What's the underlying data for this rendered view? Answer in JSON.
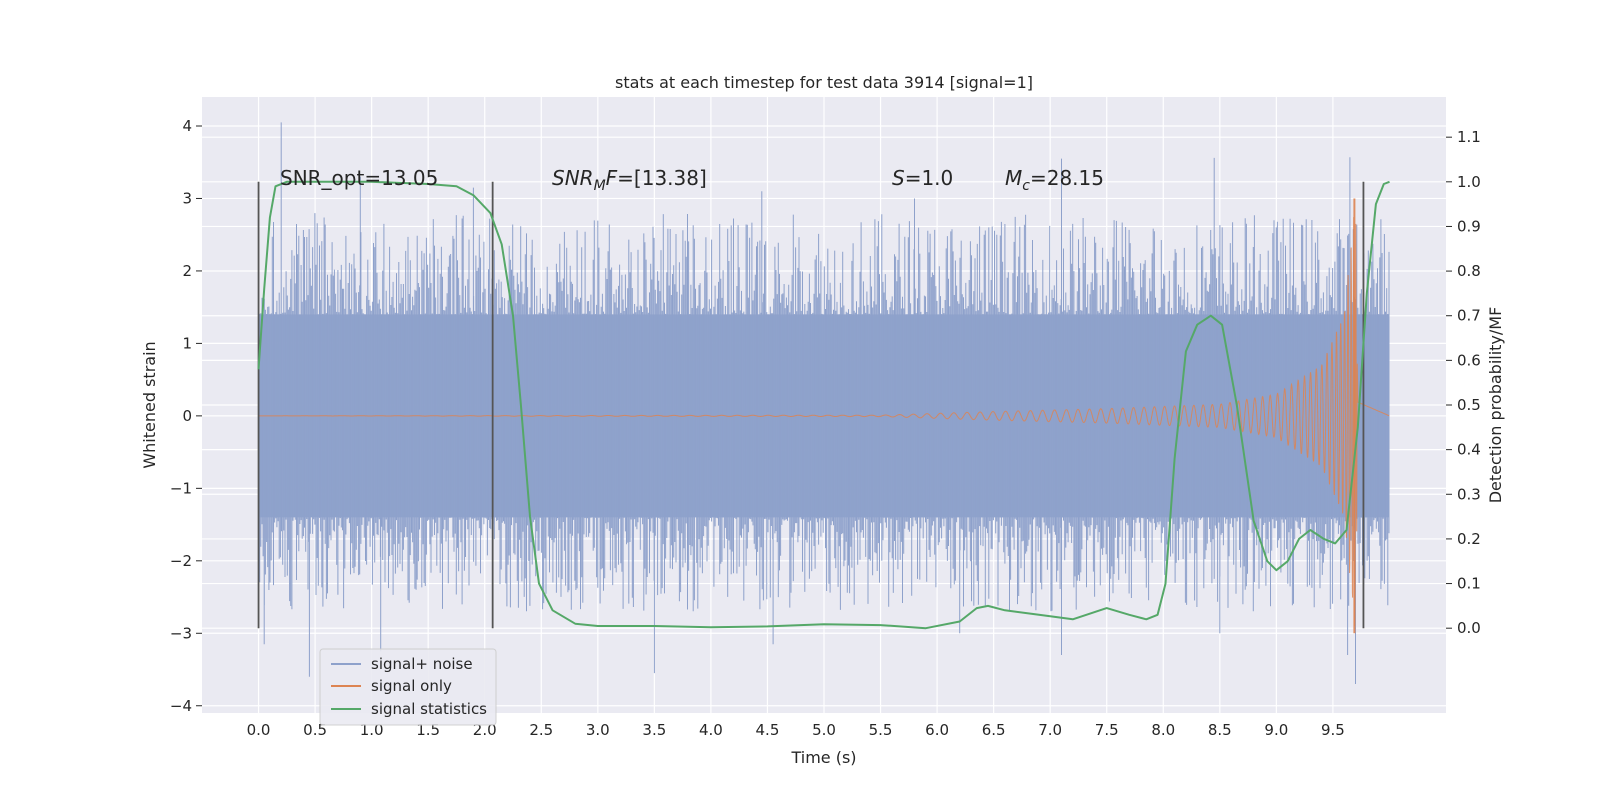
{
  "chart_data": {
    "type": "line",
    "title": "stats at each timestep for test data 3914 [signal=1]",
    "xlabel": "Time (s)",
    "ylabel": "Whitened strain",
    "ylabel_right": "Detection probability/MF",
    "xlim": [
      -0.5,
      10.5
    ],
    "ylim": [
      -4.1,
      4.4
    ],
    "ylim_right": [
      -0.19,
      1.19
    ],
    "x_ticks": [
      "0.0",
      "0.5",
      "1.0",
      "1.5",
      "2.0",
      "2.5",
      "3.0",
      "3.5",
      "4.0",
      "4.5",
      "5.0",
      "5.5",
      "6.0",
      "6.5",
      "7.0",
      "7.5",
      "8.0",
      "8.5",
      "9.0",
      "9.5"
    ],
    "y_ticks": [
      "−4",
      "−3",
      "−2",
      "−1",
      "0",
      "1",
      "2",
      "3",
      "4"
    ],
    "y_ticks_right": [
      "0.0",
      "0.1",
      "0.2",
      "0.3",
      "0.4",
      "0.5",
      "0.6",
      "0.7",
      "0.8",
      "0.9",
      "1.0",
      "1.1"
    ],
    "grid": true,
    "legend_position": "lower-left",
    "annotations": {
      "snr_opt": "SNR_opt=13.05",
      "snr_mf_main": "SNR",
      "snr_mf_sub": "M",
      "snr_mf_f": "F",
      "snr_mf_value": "=[13.38]",
      "s_label": "S",
      "s_value": "=1.0",
      "mc_main": "M",
      "mc_sub": "c",
      "mc_value": "=28.15"
    },
    "vertical_markers_x": [
      0.0,
      2.07,
      9.77
    ],
    "series": [
      {
        "name": "signal+ noise",
        "color": "#8ea1cb",
        "axis": "left",
        "x_range": [
          0.0,
          10.0
        ],
        "envelope_abs": 1.4,
        "spike_peak_max": 4.05,
        "spike_trough_min": -3.7
      },
      {
        "name": "signal only",
        "color": "#dd8452",
        "axis": "left",
        "x_range": [
          0.0,
          10.0
        ],
        "amplitude_points": [
          [
            0.0,
            0.0
          ],
          [
            5.5,
            0.01
          ],
          [
            6.5,
            0.06
          ],
          [
            7.5,
            0.1
          ],
          [
            8.5,
            0.16
          ],
          [
            9.0,
            0.3
          ],
          [
            9.4,
            0.7
          ],
          [
            9.6,
            1.4
          ],
          [
            9.7,
            3.0
          ],
          [
            9.72,
            0.2
          ],
          [
            10.0,
            0.0
          ]
        ],
        "chirp_peak": 3.0,
        "chirp_trough": -3.0
      },
      {
        "name": "signal statistics",
        "color": "#55a868",
        "axis": "right",
        "points": [
          [
            0.0,
            0.58
          ],
          [
            0.05,
            0.76
          ],
          [
            0.1,
            0.92
          ],
          [
            0.15,
            0.99
          ],
          [
            0.25,
            1.0
          ],
          [
            1.0,
            1.0
          ],
          [
            1.5,
            0.995
          ],
          [
            1.75,
            0.99
          ],
          [
            1.9,
            0.97
          ],
          [
            2.05,
            0.93
          ],
          [
            2.15,
            0.86
          ],
          [
            2.25,
            0.7
          ],
          [
            2.32,
            0.5
          ],
          [
            2.4,
            0.25
          ],
          [
            2.48,
            0.1
          ],
          [
            2.6,
            0.04
          ],
          [
            2.8,
            0.01
          ],
          [
            3.0,
            0.005
          ],
          [
            3.5,
            0.005
          ],
          [
            4.0,
            0.002
          ],
          [
            4.5,
            0.004
          ],
          [
            5.0,
            0.009
          ],
          [
            5.5,
            0.007
          ],
          [
            5.9,
            0.0
          ],
          [
            6.2,
            0.015
          ],
          [
            6.35,
            0.045
          ],
          [
            6.45,
            0.05
          ],
          [
            6.6,
            0.04
          ],
          [
            6.9,
            0.03
          ],
          [
            7.2,
            0.02
          ],
          [
            7.5,
            0.045
          ],
          [
            7.7,
            0.03
          ],
          [
            7.85,
            0.02
          ],
          [
            7.95,
            0.03
          ],
          [
            8.02,
            0.1
          ],
          [
            8.1,
            0.38
          ],
          [
            8.2,
            0.62
          ],
          [
            8.3,
            0.68
          ],
          [
            8.42,
            0.7
          ],
          [
            8.52,
            0.68
          ],
          [
            8.65,
            0.5
          ],
          [
            8.8,
            0.24
          ],
          [
            8.92,
            0.15
          ],
          [
            9.0,
            0.13
          ],
          [
            9.1,
            0.15
          ],
          [
            9.2,
            0.2
          ],
          [
            9.3,
            0.22
          ],
          [
            9.42,
            0.2
          ],
          [
            9.52,
            0.19
          ],
          [
            9.62,
            0.22
          ],
          [
            9.72,
            0.45
          ],
          [
            9.8,
            0.75
          ],
          [
            9.88,
            0.95
          ],
          [
            9.95,
            0.995
          ],
          [
            10.0,
            1.0
          ]
        ]
      }
    ],
    "legend": [
      {
        "label": "signal+ noise",
        "color": "#8ea1cb"
      },
      {
        "label": "signal only",
        "color": "#dd8452"
      },
      {
        "label": "signal statistics",
        "color": "#55a868"
      }
    ]
  }
}
